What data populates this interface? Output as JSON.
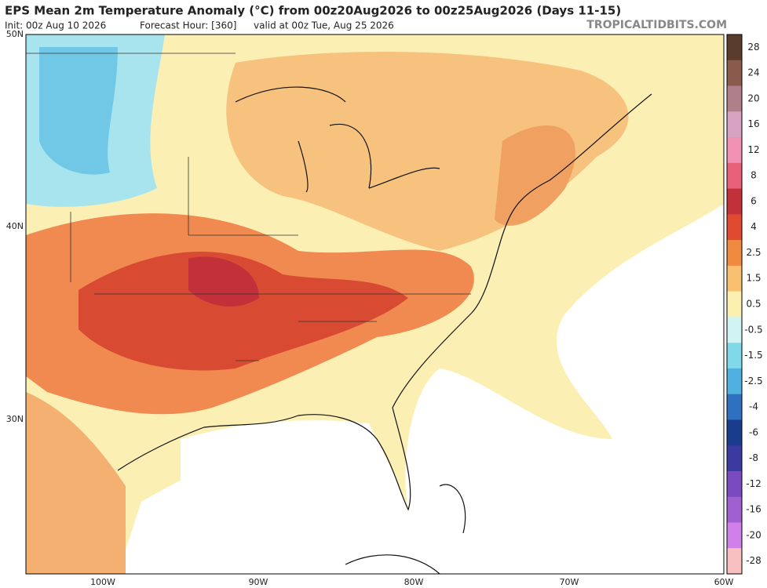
{
  "header": {
    "title": "EPS Mean 2m Temperature Anomaly (°C) from 00z20Aug2026 to 00z25Aug2026 (Days 11-15)",
    "init": "Init: 00z Aug 10 2026",
    "forecast_hour": "Forecast Hour: [360]",
    "valid": "valid at 00z Tue, Aug 25 2026",
    "site": "TROPICALTIDBITS.COM"
  },
  "map": {
    "lat_labels": [
      "50N",
      "40N",
      "30N"
    ],
    "lon_labels": [
      "100W",
      "90W",
      "80W",
      "70W",
      "60W"
    ]
  },
  "legend": {
    "labels": [
      "28",
      "24",
      "20",
      "16",
      "12",
      "8",
      "6",
      "4",
      "2.5",
      "1.5",
      "0.5",
      "-0.5",
      "-1.5",
      "-2.5",
      "-4",
      "-6",
      "-8",
      "-12",
      "-16",
      "-20",
      "-28"
    ],
    "colors": [
      "#5b3b2b",
      "#8a5a4c",
      "#b0808a",
      "#d8a2c2",
      "#f090b2",
      "#e8607a",
      "#c2303a",
      "#e04a30",
      "#f08a40",
      "#f8c070",
      "#fcf0b0",
      "#d0f4f4",
      "#80d8e8",
      "#50b0e0",
      "#3070c0",
      "#1a3c8c",
      "#3a3aa0",
      "#7a4ac0",
      "#a060d0",
      "#d080e8",
      "#f8c0c0"
    ]
  }
}
